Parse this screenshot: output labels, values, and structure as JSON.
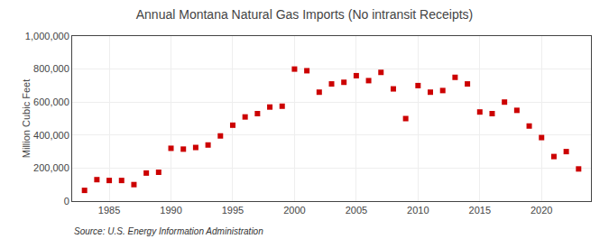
{
  "chart_data": {
    "type": "scatter",
    "title": "Annual Montana Natural Gas Imports (No intransit Receipts)",
    "ylabel": "Million Cubic Feet",
    "annotations": [
      "Source: U.S. Energy Information Administration"
    ],
    "x": [
      1983,
      1984,
      1985,
      1986,
      1987,
      1988,
      1989,
      1990,
      1991,
      1992,
      1993,
      1994,
      1995,
      1996,
      1997,
      1998,
      1999,
      2000,
      2001,
      2002,
      2003,
      2004,
      2005,
      2006,
      2007,
      2008,
      2009,
      2010,
      2011,
      2012,
      2013,
      2014,
      2015,
      2016,
      2017,
      2018,
      2019,
      2020,
      2021,
      2022,
      2023
    ],
    "values": [
      65000,
      130000,
      125000,
      125000,
      100000,
      170000,
      175000,
      320000,
      315000,
      325000,
      340000,
      395000,
      460000,
      510000,
      530000,
      570000,
      575000,
      800000,
      790000,
      660000,
      710000,
      720000,
      760000,
      730000,
      780000,
      680000,
      500000,
      700000,
      660000,
      670000,
      750000,
      710000,
      540000,
      530000,
      600000,
      550000,
      455000,
      385000,
      270000,
      300000,
      195000
    ],
    "color": "#cc0000",
    "marker": "square",
    "xlim": [
      1982,
      2024
    ],
    "xticks": [
      1985,
      1990,
      1995,
      2000,
      2005,
      2010,
      2015,
      2020
    ],
    "ylim": [
      0,
      1000000
    ],
    "yticks": [
      0,
      {
        "value": 200000,
        "label": "200,000"
      },
      {
        "value": 400000,
        "label": "400,000"
      },
      {
        "value": 600000,
        "label": "600,000"
      },
      {
        "value": 800000,
        "label": "800,000"
      },
      {
        "value": 1000000,
        "label": "1,000,000"
      }
    ],
    "grid": true
  }
}
